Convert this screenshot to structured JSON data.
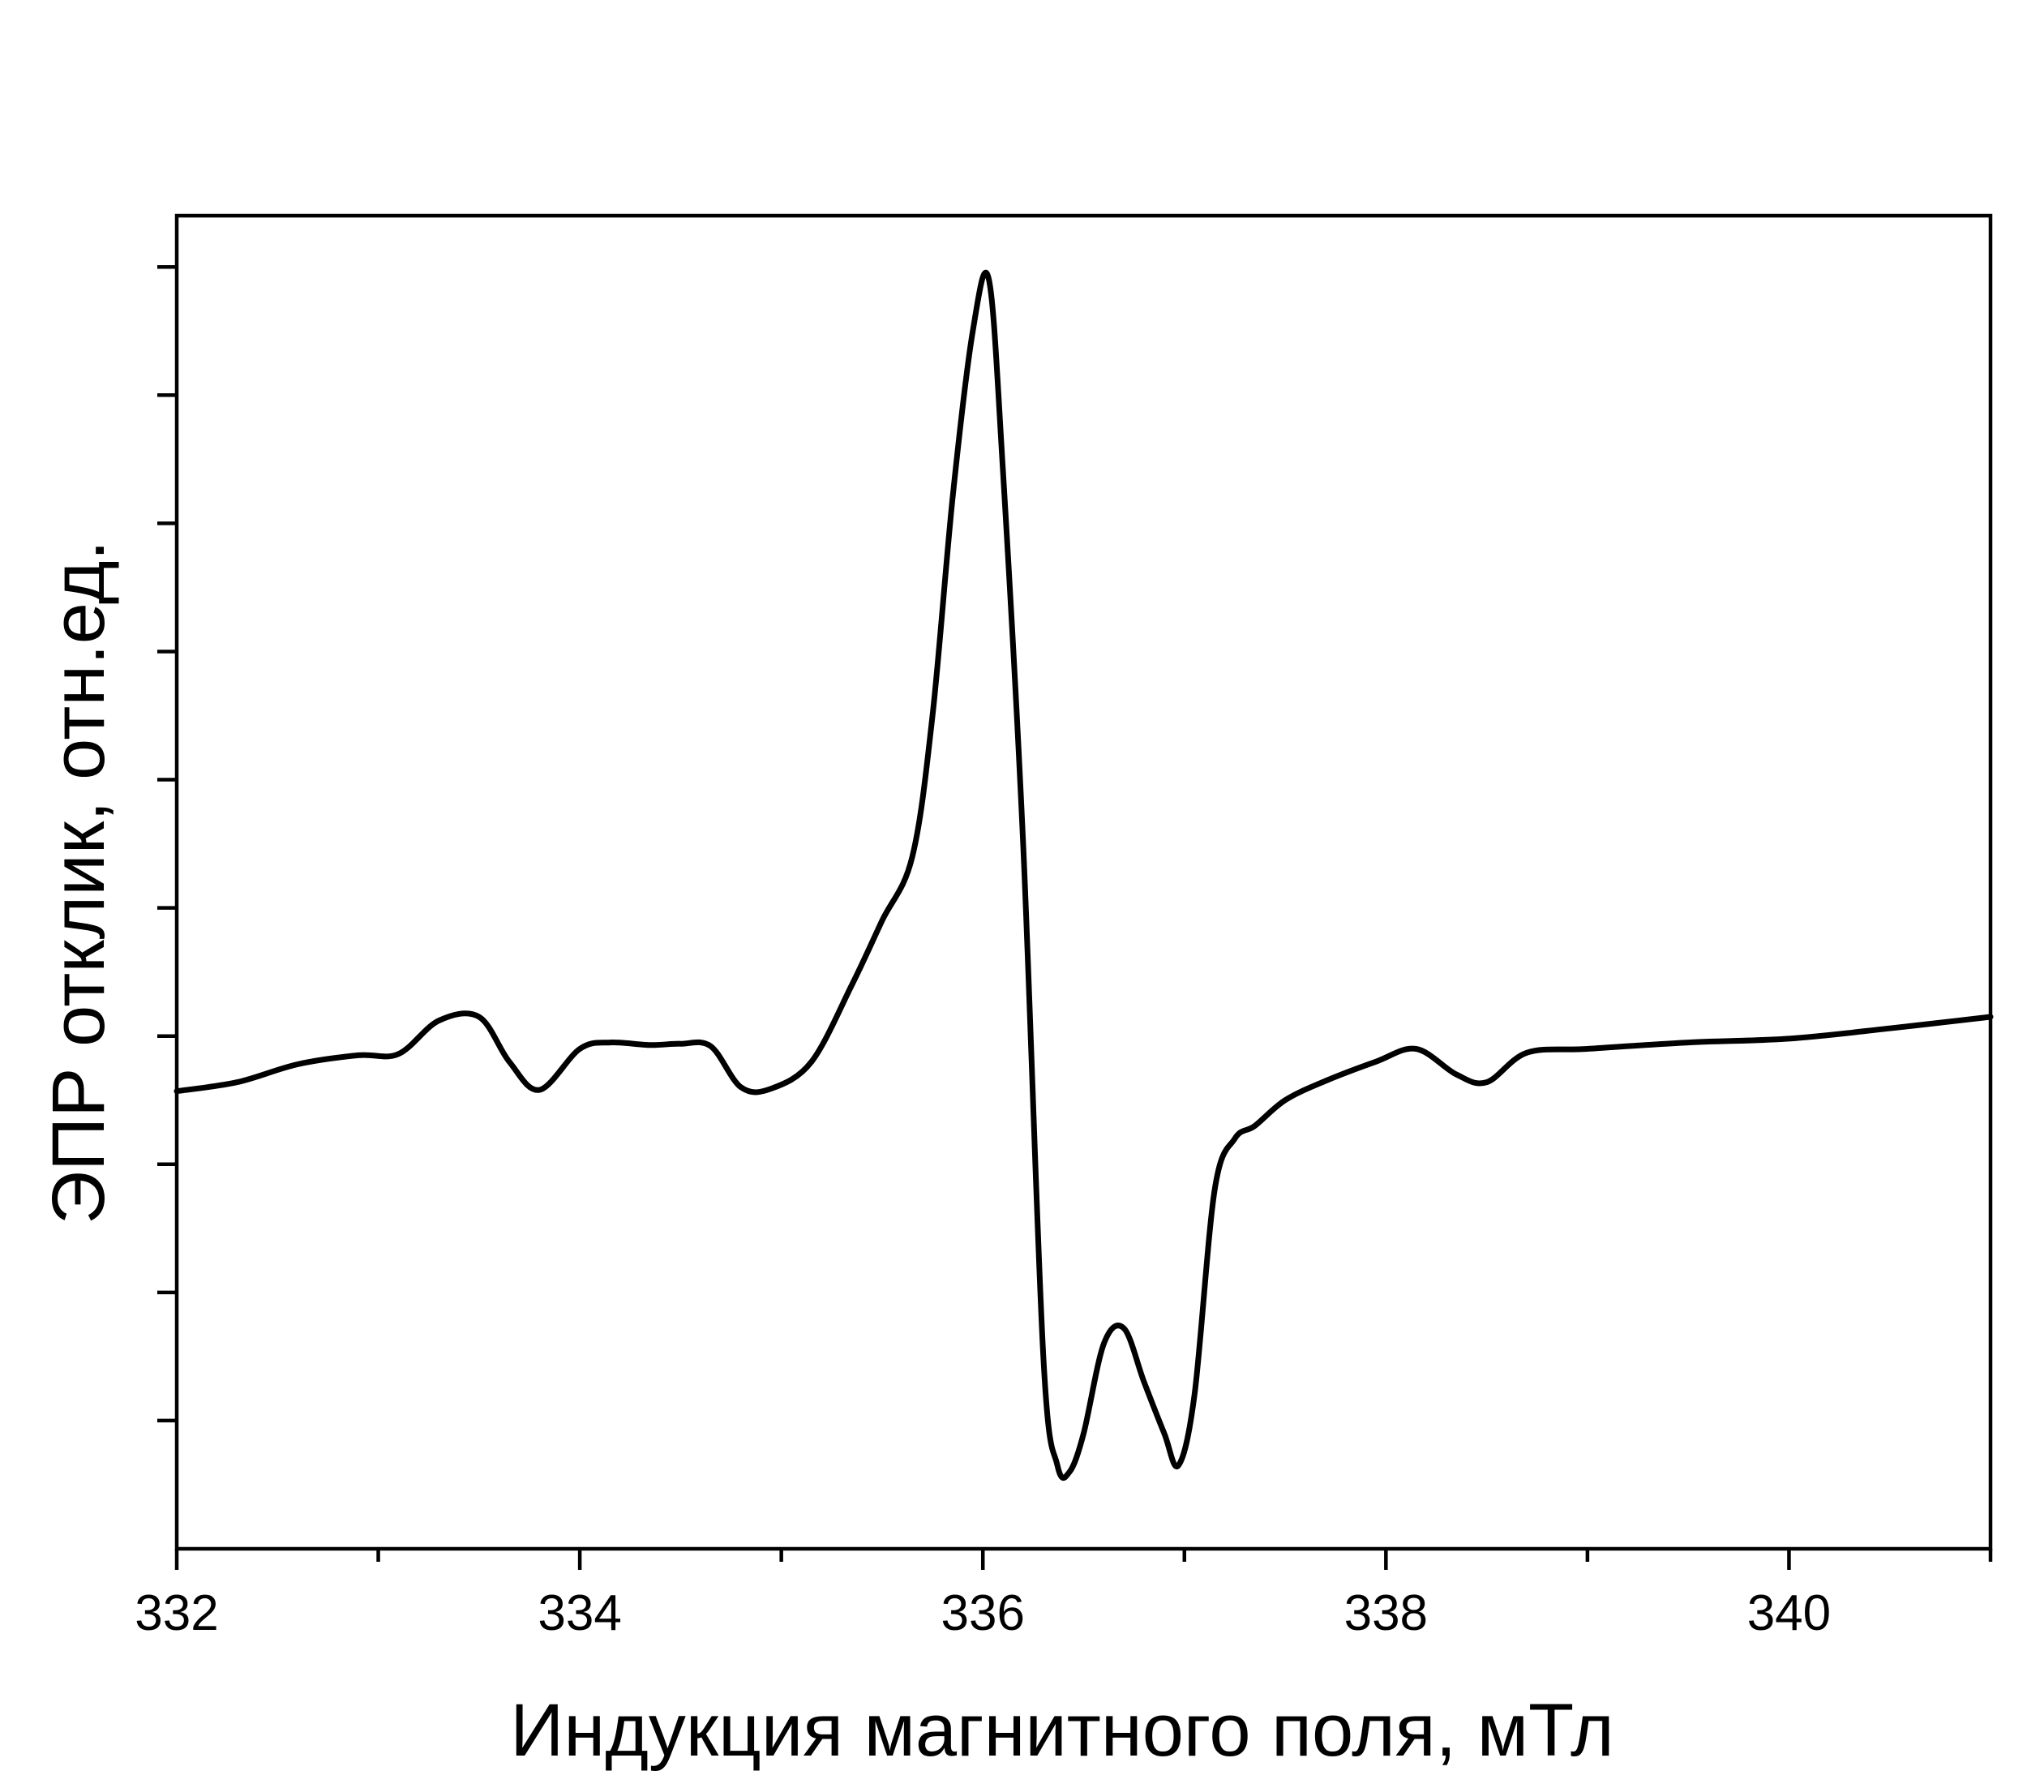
{
  "chart_data": {
    "type": "line",
    "title": "",
    "xlabel": "Индукция магнитного поля, мТл",
    "ylabel": "ЭПР отклик, отн.ед.",
    "xlim": [
      332,
      341
    ],
    "ylim": [
      -3.0,
      7.4
    ],
    "x_major_ticks": [
      332,
      334,
      336,
      338,
      340
    ],
    "x_tick_labels": [
      "332",
      "334",
      "336",
      "338",
      "340"
    ],
    "x_minor_ticks": [
      333,
      335,
      337,
      339,
      341
    ],
    "y_ticks": [
      -2,
      -1,
      0,
      1,
      2,
      3,
      4,
      5,
      6,
      7
    ],
    "y_tick_labels_shown": false,
    "grid": false,
    "legend": "none",
    "line_color": "#000000",
    "series": [
      {
        "x": [
          332.0,
          332.3,
          332.6,
          332.9,
          333.1,
          333.3,
          333.5,
          333.65,
          333.8,
          334.0,
          334.15,
          334.35,
          334.5,
          334.65,
          334.8,
          334.95,
          335.15,
          335.35,
          335.5,
          335.65,
          335.75,
          335.85,
          335.95,
          336.03,
          336.1,
          336.2,
          336.3,
          336.37,
          336.43,
          336.5,
          336.6,
          336.7,
          336.8,
          336.9,
          336.97,
          337.05,
          337.15,
          337.25,
          337.35,
          337.5,
          337.7,
          337.95,
          338.15,
          338.35,
          338.5,
          338.7,
          339.0,
          339.5,
          340.0,
          340.5,
          341.0
        ],
        "y": [
          0.57,
          0.64,
          0.78,
          0.85,
          0.86,
          1.12,
          1.15,
          0.8,
          0.58,
          0.9,
          0.95,
          0.93,
          0.94,
          0.92,
          0.6,
          0.59,
          0.8,
          1.4,
          1.9,
          2.4,
          3.5,
          5.2,
          6.5,
          6.9,
          5.4,
          2.5,
          -1.5,
          -2.35,
          -2.4,
          -2.1,
          -1.4,
          -1.28,
          -1.7,
          -2.1,
          -2.35,
          -1.8,
          -0.2,
          0.2,
          0.3,
          0.5,
          0.65,
          0.8,
          0.9,
          0.7,
          0.64,
          0.87,
          0.9,
          0.95,
          0.98,
          1.06,
          1.15
        ]
      }
    ]
  }
}
